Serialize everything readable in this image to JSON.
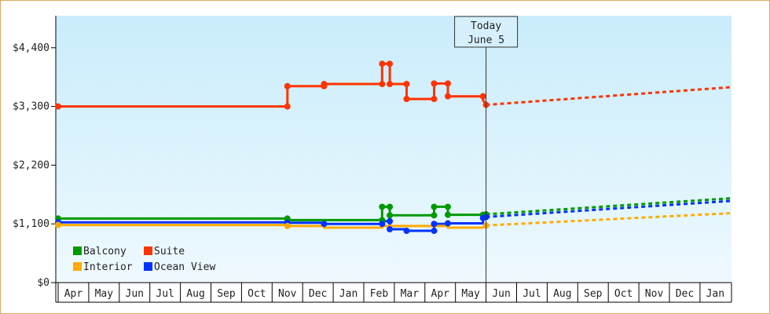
{
  "chart_data": {
    "type": "line",
    "ylim": [
      0,
      5000
    ],
    "y_ticks": [
      {
        "value": 0,
        "label": "$0"
      },
      {
        "value": 1100,
        "label": "$1,100"
      },
      {
        "value": 2200,
        "label": "$2,200"
      },
      {
        "value": 3300,
        "label": "$3,300"
      },
      {
        "value": 4400,
        "label": "$4,400"
      }
    ],
    "months": [
      "Apr",
      "May",
      "Jun",
      "Jul",
      "Aug",
      "Sep",
      "Oct",
      "Nov",
      "Dec",
      "Jan",
      "Feb",
      "Mar",
      "Apr",
      "May",
      "Jun",
      "Jul",
      "Aug",
      "Sep",
      "Oct",
      "Nov",
      "Dec",
      "Jan"
    ],
    "today_month": 14.0,
    "callout": {
      "line1": "Today",
      "line2": "June 5"
    },
    "legend_position": "bottom-left",
    "grid": false,
    "series": [
      {
        "name": "Suite",
        "color": "#ff3300",
        "points": [
          [
            0,
            3300
          ],
          [
            7.5,
            3300
          ],
          [
            7.5,
            3680
          ],
          [
            8.7,
            3680
          ],
          [
            8.7,
            3720
          ],
          [
            10.6,
            3720
          ],
          [
            10.6,
            4100
          ],
          [
            10.85,
            4100
          ],
          [
            10.85,
            3720
          ],
          [
            11.4,
            3720
          ],
          [
            11.4,
            3440
          ],
          [
            12.3,
            3440
          ],
          [
            12.3,
            3730
          ],
          [
            12.75,
            3730
          ],
          [
            12.75,
            3490
          ],
          [
            13.9,
            3490
          ],
          [
            13.9,
            3420
          ],
          [
            14.0,
            3330
          ]
        ],
        "markers": [
          [
            0,
            3300
          ],
          [
            7.5,
            3300
          ],
          [
            7.5,
            3680
          ],
          [
            8.7,
            3680
          ],
          [
            8.7,
            3720
          ],
          [
            10.6,
            3720
          ],
          [
            10.6,
            4100
          ],
          [
            10.85,
            4100
          ],
          [
            10.85,
            3720
          ],
          [
            11.4,
            3720
          ],
          [
            11.4,
            3440
          ],
          [
            12.3,
            3440
          ],
          [
            12.3,
            3730
          ],
          [
            12.75,
            3730
          ],
          [
            12.75,
            3490
          ],
          [
            13.9,
            3490
          ],
          [
            14.0,
            3330
          ]
        ],
        "forecast": [
          [
            14.0,
            3330
          ],
          [
            22,
            3660
          ]
        ]
      },
      {
        "name": "Balcony",
        "color": "#009900",
        "points": [
          [
            0,
            1200
          ],
          [
            7.5,
            1200
          ],
          [
            7.5,
            1170
          ],
          [
            10.6,
            1170
          ],
          [
            10.6,
            1420
          ],
          [
            10.85,
            1420
          ],
          [
            10.85,
            1260
          ],
          [
            12.3,
            1260
          ],
          [
            12.3,
            1420
          ],
          [
            12.75,
            1420
          ],
          [
            12.75,
            1270
          ],
          [
            13.9,
            1270
          ],
          [
            14.0,
            1280
          ]
        ],
        "markers": [
          [
            0,
            1200
          ],
          [
            7.5,
            1200
          ],
          [
            7.5,
            1170
          ],
          [
            10.6,
            1170
          ],
          [
            10.6,
            1420
          ],
          [
            10.85,
            1420
          ],
          [
            10.85,
            1260
          ],
          [
            12.3,
            1260
          ],
          [
            12.3,
            1420
          ],
          [
            12.75,
            1420
          ],
          [
            12.75,
            1270
          ],
          [
            13.9,
            1270
          ],
          [
            14.0,
            1280
          ]
        ],
        "forecast": [
          [
            14.0,
            1280
          ],
          [
            22,
            1580
          ]
        ]
      },
      {
        "name": "Ocean View",
        "color": "#0033ff",
        "points": [
          [
            0,
            1130
          ],
          [
            7.5,
            1130
          ],
          [
            7.5,
            1120
          ],
          [
            8.7,
            1120
          ],
          [
            8.7,
            1100
          ],
          [
            10.6,
            1100
          ],
          [
            10.6,
            1150
          ],
          [
            10.85,
            1150
          ],
          [
            10.85,
            1000
          ],
          [
            11.4,
            1000
          ],
          [
            11.4,
            970
          ],
          [
            12.3,
            970
          ],
          [
            12.3,
            1100
          ],
          [
            12.75,
            1100
          ],
          [
            12.75,
            1110
          ],
          [
            13.9,
            1110
          ],
          [
            13.9,
            1210
          ],
          [
            14.0,
            1230
          ]
        ],
        "markers": [
          [
            0,
            1130
          ],
          [
            7.5,
            1120
          ],
          [
            8.7,
            1100
          ],
          [
            10.6,
            1100
          ],
          [
            10.85,
            1150
          ],
          [
            10.85,
            1000
          ],
          [
            11.4,
            970
          ],
          [
            12.3,
            970
          ],
          [
            12.3,
            1100
          ],
          [
            12.75,
            1110
          ],
          [
            13.9,
            1210
          ],
          [
            14.0,
            1230
          ]
        ],
        "forecast": [
          [
            14.0,
            1230
          ],
          [
            22,
            1530
          ]
        ]
      },
      {
        "name": "Interior",
        "color": "#ffaa00",
        "points": [
          [
            0,
            1080
          ],
          [
            7.5,
            1080
          ],
          [
            7.5,
            1060
          ],
          [
            8.7,
            1060
          ],
          [
            8.7,
            1030
          ],
          [
            10.6,
            1030
          ],
          [
            10.6,
            1060
          ],
          [
            12.75,
            1060
          ],
          [
            12.75,
            1030
          ],
          [
            13.9,
            1030
          ],
          [
            14.0,
            1070
          ]
        ],
        "markers": [
          [
            0,
            1080
          ],
          [
            7.5,
            1060
          ],
          [
            14.0,
            1070
          ]
        ],
        "forecast": [
          [
            14.0,
            1070
          ],
          [
            22,
            1300
          ]
        ]
      }
    ]
  }
}
